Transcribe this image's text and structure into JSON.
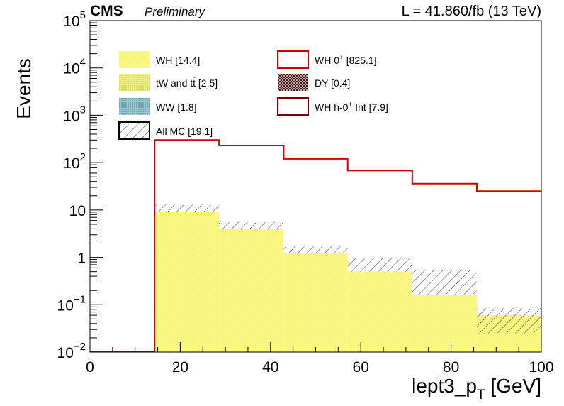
{
  "header": {
    "experiment": "CMS",
    "status": "Preliminary",
    "lumi": "L = 41.860/fb (13 TeV)"
  },
  "colors": {
    "wh": "#fbf98a",
    "wh_dot": "#e4de2c",
    "tw": "#d9dc6e",
    "ww": "#4a8ca0",
    "dy": "#5a3030",
    "signal": "#cc0000",
    "interference": "#7a0000"
  },
  "chart_data": {
    "type": "histogram",
    "xlabel": "lept3_p",
    "xlabel_sub": "T",
    "xlabel_unit": " [GeV]",
    "ylabel": "Events",
    "xlim": [
      0,
      100
    ],
    "ylim": [
      0.01,
      100000
    ],
    "yscale": "log",
    "grid": false,
    "legend_position": "top-left",
    "bin_edges": [
      0,
      14.3,
      28.6,
      42.9,
      57.1,
      71.4,
      85.7,
      100
    ],
    "xticks": [
      "0",
      "20",
      "40",
      "60",
      "80",
      "100"
    ],
    "yticks": [
      {
        "base": "10",
        "exp": "−2"
      },
      {
        "base": "10",
        "exp": "−1"
      },
      {
        "base": "1",
        "exp": ""
      },
      {
        "base": "10",
        "exp": ""
      },
      {
        "base": "10",
        "exp": "2"
      },
      {
        "base": "10",
        "exp": "3"
      },
      {
        "base": "10",
        "exp": "4"
      },
      {
        "base": "10",
        "exp": "5"
      }
    ],
    "stack_total": [
      0,
      9.0,
      4.0,
      1.25,
      0.5,
      0.16,
      0.06
    ],
    "mc_total": [
      0,
      13.0,
      5.6,
      1.7,
      0.95,
      0.55,
      0.085
    ],
    "mc_unc_down": [
      0,
      9.0,
      4.0,
      1.25,
      0.5,
      0.16,
      0.025
    ],
    "signal_values": [
      0.01,
      300,
      230,
      120,
      68,
      36,
      25
    ],
    "legend": [
      {
        "label": "WH [14.4]",
        "style": "wh"
      },
      {
        "label": "WH 0",
        "sup": "+",
        "tail": " [825.1]",
        "style": "signal"
      },
      {
        "label": "tW and t",
        "bar": "t",
        "tail": " [2.5]",
        "style": "tw"
      },
      {
        "label": "DY [0.4]",
        "style": "dy"
      },
      {
        "label": "WW [1.8]",
        "style": "ww"
      },
      {
        "label": "WH h-0",
        "sup": "+",
        "tail": " Int [7.9]",
        "style": "int"
      },
      {
        "label": "All MC [19.1]",
        "style": "hatch"
      }
    ]
  }
}
